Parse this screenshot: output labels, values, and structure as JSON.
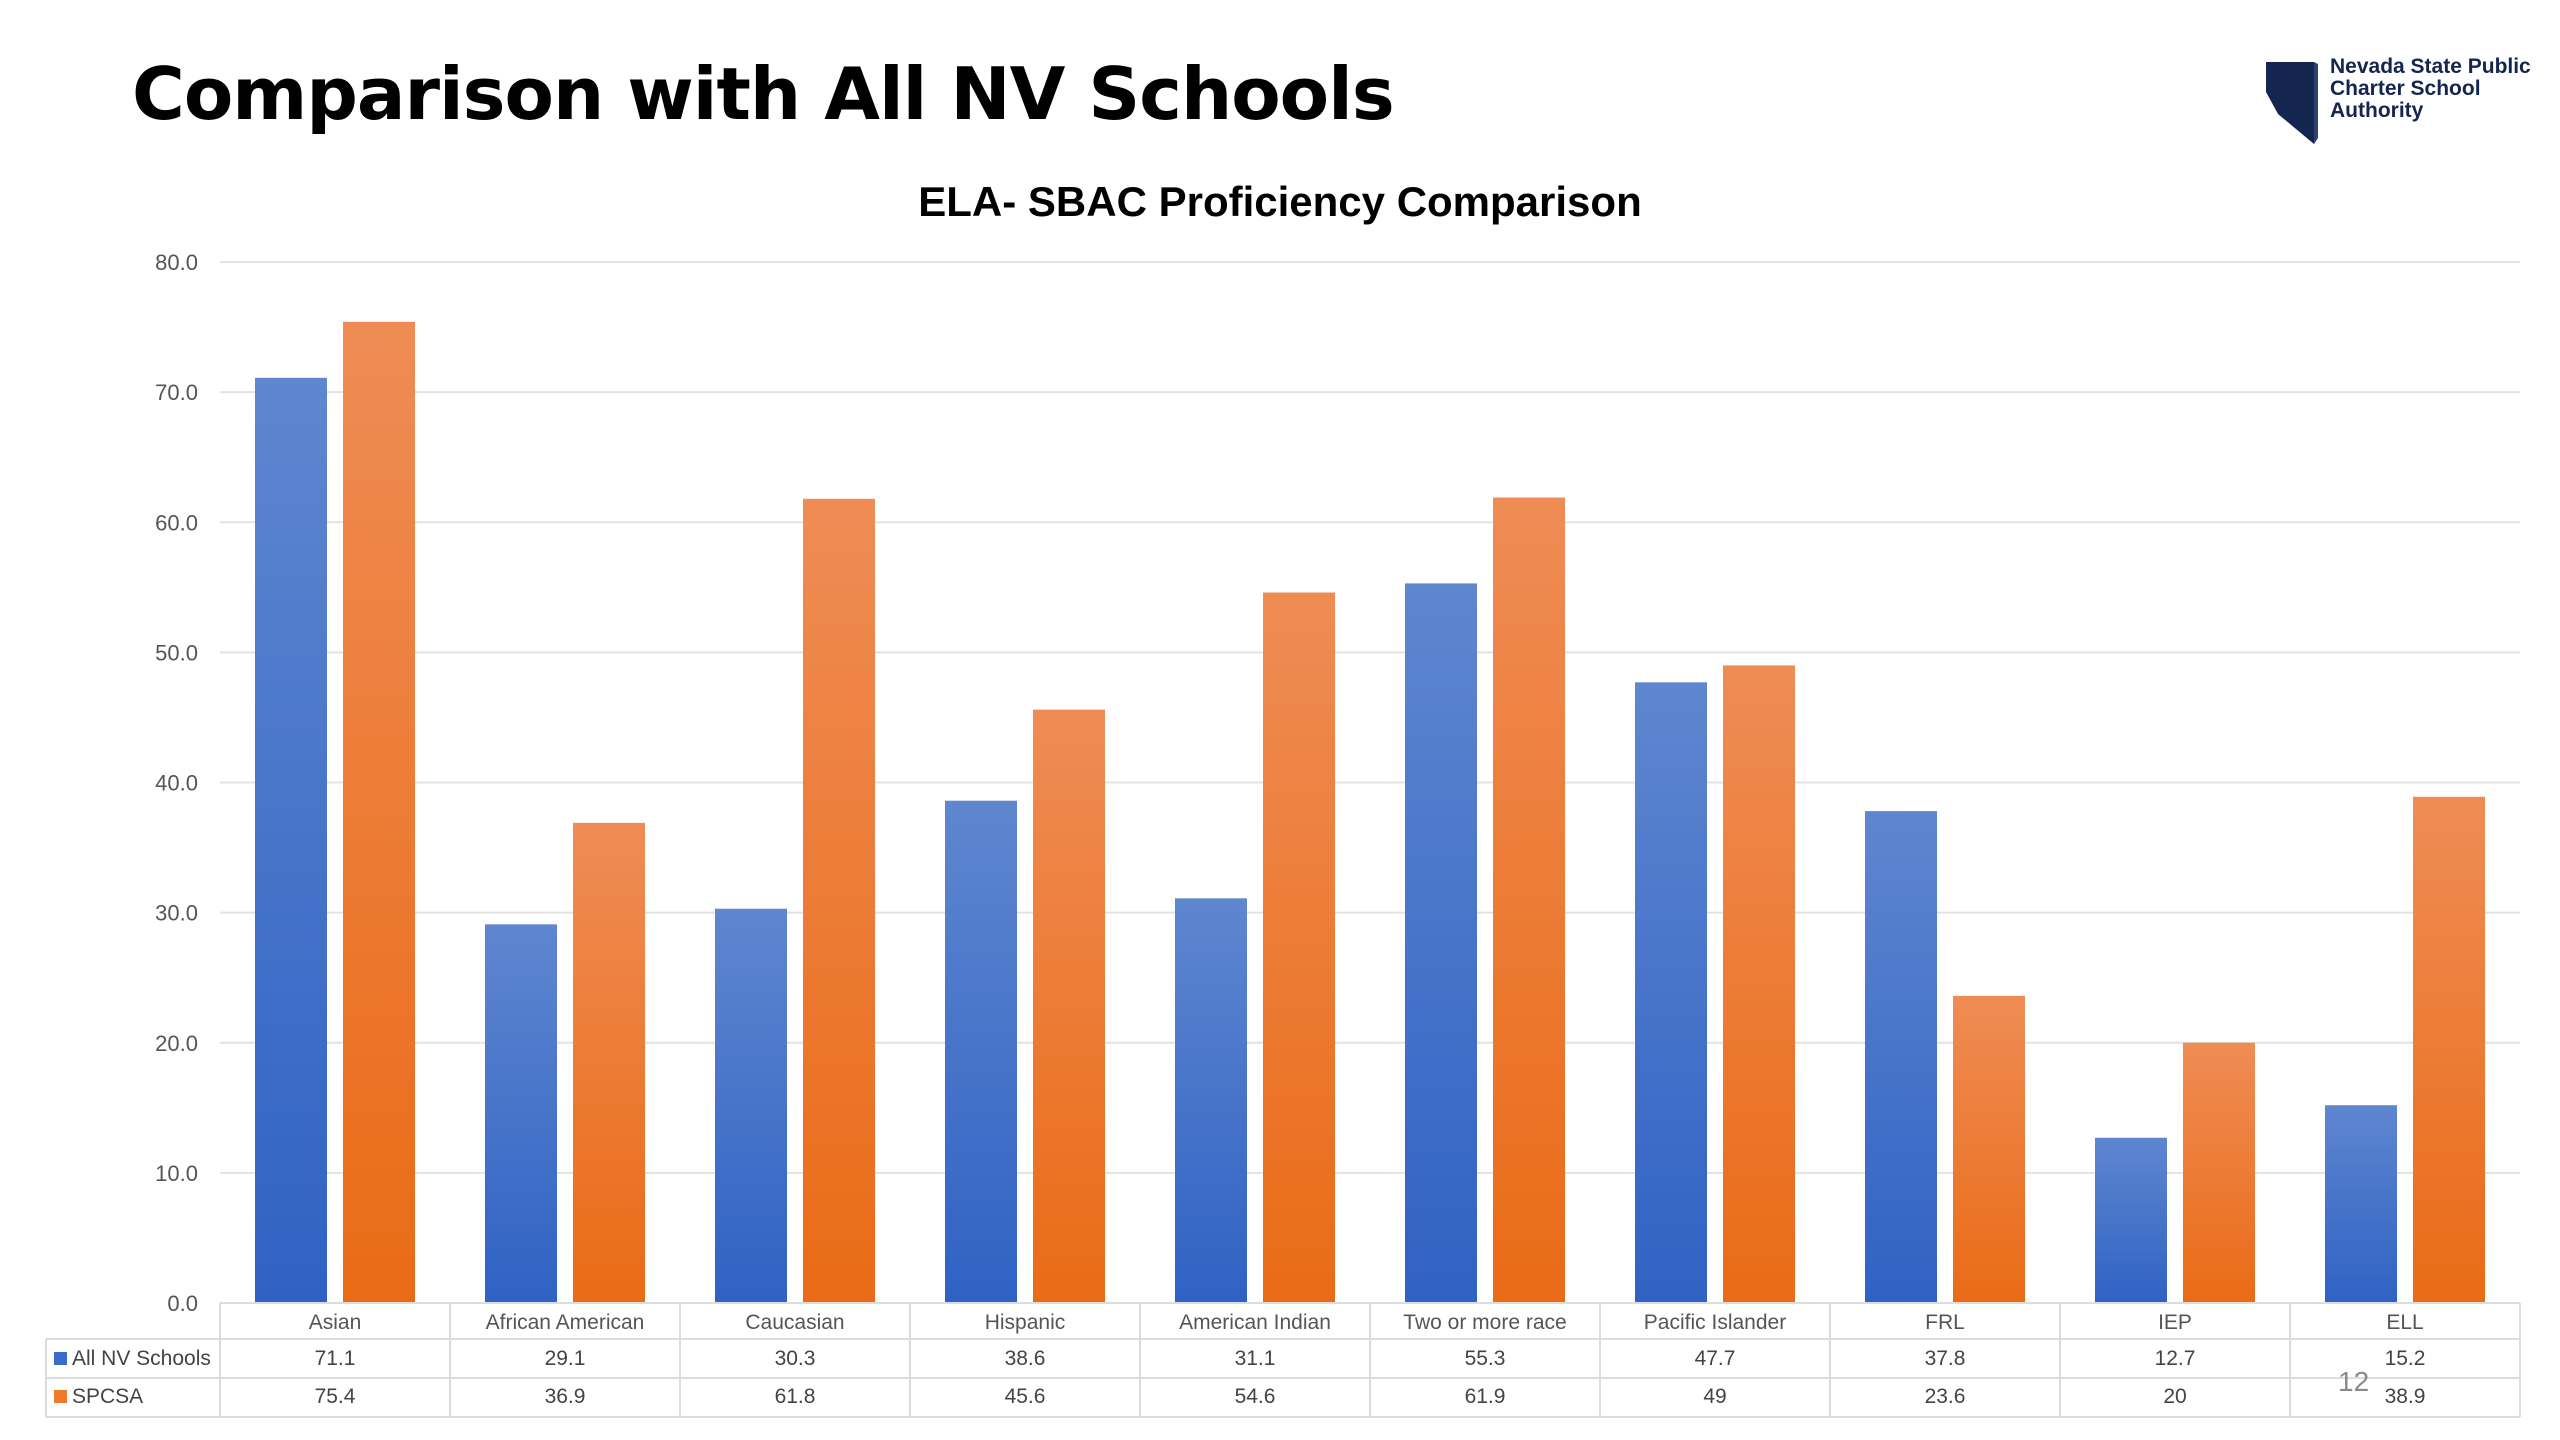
{
  "slide": {
    "title": "Comparison with All NV Schools",
    "page_number": "12",
    "logo": {
      "lines": [
        "Nevada State Public",
        "Charter School",
        "Authority"
      ],
      "color": "#14264f"
    }
  },
  "chart_data": {
    "type": "bar",
    "title": "ELA- SBAC Proficiency Comparison",
    "categories": [
      "Asian",
      "African American",
      "Caucasian",
      "Hispanic",
      "American Indian",
      "Two or more race",
      "Pacific Islander",
      "FRL",
      "IEP",
      "ELL"
    ],
    "series": [
      {
        "name": "All NV Schools",
        "values": [
          71.1,
          29.1,
          30.3,
          38.6,
          31.1,
          55.3,
          47.7,
          37.8,
          12.7,
          15.2
        ],
        "labels": [
          "71.1",
          "29.1",
          "30.3",
          "38.6",
          "31.1",
          "55.3",
          "47.7",
          "37.8",
          "12.7",
          "15.2"
        ],
        "color": "#3a6cc9"
      },
      {
        "name": "SPCSA",
        "values": [
          75.4,
          36.9,
          61.8,
          45.6,
          54.6,
          61.9,
          49,
          23.6,
          20,
          38.9
        ],
        "labels": [
          "75.4",
          "36.9",
          "61.8",
          "45.6",
          "54.6",
          "61.9",
          "49",
          "23.6",
          "20",
          "38.9"
        ],
        "color": "#f0792a"
      }
    ],
    "ylim": [
      0,
      80
    ],
    "yticks": [
      "0.0",
      "10.0",
      "20.0",
      "30.0",
      "40.0",
      "50.0",
      "60.0",
      "70.0",
      "80.0"
    ],
    "ytick_values": [
      0,
      10,
      20,
      30,
      40,
      50,
      60,
      70,
      80
    ],
    "grid": true,
    "legend": "data-table",
    "xlabel": "",
    "ylabel": ""
  }
}
